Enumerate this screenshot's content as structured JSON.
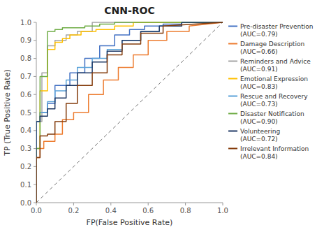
{
  "chart_data": {
    "type": "line",
    "title": "CNN-ROC",
    "x_label": "FP(False Positive Rate)",
    "y_label": "TP (True Positive Rate)",
    "xlim": [
      0,
      1.0
    ],
    "ylim": [
      0,
      1.0
    ],
    "xticks": [
      {
        "value": 0,
        "label": "0.0"
      },
      0.2,
      0.4,
      0.6,
      0.8,
      {
        "value": 1,
        "label": "1.0"
      }
    ],
    "yticks": [
      {
        "value": 0,
        "label": "0.0"
      },
      0.1,
      0.2,
      0.3,
      0.4,
      0.5,
      0.6,
      0.7,
      0.8,
      0.9,
      {
        "value": 1,
        "label": "1.0"
      }
    ],
    "grid": false,
    "legend": "right",
    "reference_line": {
      "x": [
        0,
        1
      ],
      "values": [
        0,
        1
      ],
      "color": "#707070",
      "line_style": "dashed"
    },
    "series": [
      {
        "name": "Pre-disaster Prevention\n(AUC=0.79)",
        "color": "#4472C4",
        "x": [
          0.0,
          0.0,
          0.02,
          0.02,
          0.06,
          0.06,
          0.1,
          0.1,
          0.18,
          0.18,
          0.26,
          0.26,
          0.34,
          0.34,
          0.42,
          0.42,
          0.5,
          0.5,
          0.58,
          0.58,
          0.68,
          0.68,
          0.78,
          0.78,
          1.0
        ],
        "values": [
          0.0,
          0.45,
          0.45,
          0.5,
          0.5,
          0.55,
          0.55,
          0.65,
          0.65,
          0.72,
          0.72,
          0.8,
          0.8,
          0.87,
          0.87,
          0.93,
          0.93,
          0.96,
          0.96,
          0.98,
          0.98,
          0.99,
          0.99,
          1.0,
          1.0
        ]
      },
      {
        "name": "Damage Description\n(AUC=0.66)",
        "color": "#ED7D31",
        "x": [
          0.0,
          0.0,
          0.02,
          0.02,
          0.04,
          0.04,
          0.1,
          0.1,
          0.14,
          0.14,
          0.2,
          0.2,
          0.28,
          0.28,
          0.36,
          0.36,
          0.44,
          0.44,
          0.52,
          0.52,
          0.6,
          0.6,
          0.7,
          0.7,
          0.82,
          0.82,
          1.0
        ],
        "values": [
          0.0,
          0.25,
          0.25,
          0.3,
          0.3,
          0.34,
          0.34,
          0.38,
          0.38,
          0.46,
          0.46,
          0.5,
          0.5,
          0.6,
          0.6,
          0.68,
          0.68,
          0.75,
          0.75,
          0.82,
          0.82,
          0.9,
          0.9,
          0.95,
          0.95,
          0.98,
          1.0
        ]
      },
      {
        "name": "Reminders and Advice\n(AUC=0.91)",
        "color": "#A5A5A5",
        "x": [
          0.0,
          0.0,
          0.03,
          0.03,
          0.06,
          0.06,
          0.1,
          0.1,
          0.16,
          0.16,
          0.22,
          0.22,
          0.3,
          0.3,
          1.0
        ],
        "values": [
          0.0,
          0.45,
          0.45,
          0.72,
          0.72,
          0.87,
          0.87,
          0.9,
          0.9,
          0.93,
          0.93,
          0.95,
          0.95,
          1.0,
          1.0
        ]
      },
      {
        "name": "Emotional Expression\n(AUC=0.83)",
        "color": "#FFC000",
        "x": [
          0.0,
          0.0,
          0.02,
          0.02,
          0.06,
          0.06,
          0.1,
          0.1,
          0.14,
          0.14,
          0.18,
          0.18,
          0.24,
          0.24,
          0.32,
          0.32,
          0.42,
          0.42,
          0.52,
          0.52,
          1.0
        ],
        "values": [
          0.0,
          0.3,
          0.3,
          0.62,
          0.62,
          0.85,
          0.85,
          0.89,
          0.89,
          0.91,
          0.91,
          0.93,
          0.93,
          0.95,
          0.95,
          0.96,
          0.96,
          0.98,
          0.98,
          1.0,
          1.0
        ]
      },
      {
        "name": "Rescue and Recovery\n(AUC=0.73)",
        "color": "#5BA3D9",
        "x": [
          0.0,
          0.0,
          0.02,
          0.02,
          0.06,
          0.06,
          0.1,
          0.1,
          0.16,
          0.16,
          0.22,
          0.22,
          0.3,
          0.3,
          0.38,
          0.38,
          0.46,
          0.46,
          0.56,
          0.56,
          0.66,
          0.66,
          0.78,
          0.78,
          1.0
        ],
        "values": [
          0.0,
          0.45,
          0.45,
          0.5,
          0.5,
          0.56,
          0.56,
          0.62,
          0.62,
          0.68,
          0.68,
          0.75,
          0.75,
          0.8,
          0.8,
          0.85,
          0.85,
          0.9,
          0.9,
          0.95,
          0.95,
          0.98,
          0.98,
          1.0,
          1.0
        ]
      },
      {
        "name": "Disaster Notification\n(AUC=0.90)",
        "color": "#70AD47",
        "x": [
          0.0,
          0.0,
          0.02,
          0.02,
          0.06,
          0.06,
          0.1,
          0.1,
          0.14,
          0.14,
          0.2,
          0.2,
          0.26,
          0.26,
          0.34,
          0.34,
          0.42,
          0.42,
          0.54,
          0.54,
          0.64,
          0.64,
          1.0
        ],
        "values": [
          0.0,
          0.3,
          0.3,
          0.7,
          0.7,
          0.95,
          0.95,
          0.96,
          0.96,
          0.97,
          0.97,
          0.97,
          0.97,
          0.98,
          0.98,
          0.99,
          0.99,
          1.0,
          1.0,
          1.0,
          1.0,
          1.0,
          1.0
        ]
      },
      {
        "name": "Volunteering\n(AUC=0.72)",
        "color": "#1F3864",
        "x": [
          0.0,
          0.0,
          0.02,
          0.02,
          0.06,
          0.06,
          0.1,
          0.1,
          0.16,
          0.16,
          0.22,
          0.22,
          0.3,
          0.3,
          0.38,
          0.38,
          0.46,
          0.46,
          0.56,
          0.56,
          0.66,
          0.66,
          0.78,
          0.78,
          1.0
        ],
        "values": [
          0.0,
          0.45,
          0.45,
          0.48,
          0.48,
          0.52,
          0.52,
          0.58,
          0.58,
          0.65,
          0.65,
          0.72,
          0.72,
          0.78,
          0.78,
          0.84,
          0.84,
          0.9,
          0.9,
          0.95,
          0.95,
          0.98,
          0.98,
          1.0,
          1.0
        ]
      },
      {
        "name": "Irrelevant Information\n(AUC=0.84)",
        "color": "#843C0C",
        "x": [
          0.0,
          0.0,
          0.02,
          0.02,
          0.06,
          0.06,
          0.1,
          0.1,
          0.16,
          0.16,
          0.22,
          0.22,
          0.3,
          0.3,
          0.38,
          0.38,
          0.46,
          0.46,
          0.56,
          0.56,
          0.68,
          0.68,
          1.0
        ],
        "values": [
          0.0,
          0.25,
          0.25,
          0.37,
          0.37,
          0.38,
          0.38,
          0.45,
          0.45,
          0.55,
          0.55,
          0.65,
          0.65,
          0.72,
          0.72,
          0.82,
          0.82,
          0.88,
          0.88,
          0.94,
          0.94,
          0.98,
          1.0
        ]
      }
    ]
  }
}
